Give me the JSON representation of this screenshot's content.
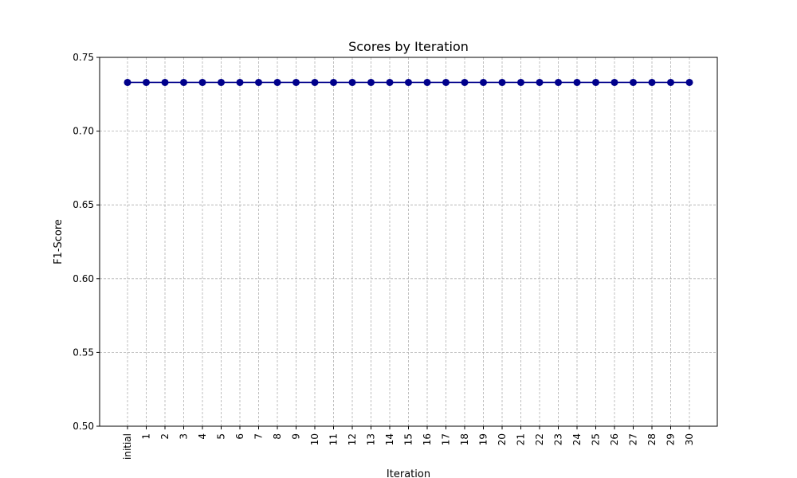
{
  "chart_data": {
    "type": "line",
    "title": "Scores by Iteration",
    "xlabel": "Iteration",
    "ylabel": "F1-Score",
    "categories": [
      "initial",
      "1",
      "2",
      "3",
      "4",
      "5",
      "6",
      "7",
      "8",
      "9",
      "10",
      "11",
      "12",
      "13",
      "14",
      "15",
      "16",
      "17",
      "18",
      "19",
      "20",
      "21",
      "22",
      "23",
      "24",
      "25",
      "26",
      "27",
      "28",
      "29",
      "30"
    ],
    "series": [
      {
        "values": [
          0.733,
          0.733,
          0.733,
          0.733,
          0.733,
          0.733,
          0.733,
          0.733,
          0.733,
          0.733,
          0.733,
          0.733,
          0.733,
          0.733,
          0.733,
          0.733,
          0.733,
          0.733,
          0.733,
          0.733,
          0.733,
          0.733,
          0.733,
          0.733,
          0.733,
          0.733,
          0.733,
          0.733,
          0.733,
          0.733,
          0.733
        ]
      }
    ],
    "ylim": [
      0.5,
      0.75
    ],
    "yticks": [
      "0.50",
      "0.55",
      "0.60",
      "0.65",
      "0.70",
      "0.75"
    ],
    "grid": true,
    "line_color": "#00008b",
    "marker": "circle"
  }
}
